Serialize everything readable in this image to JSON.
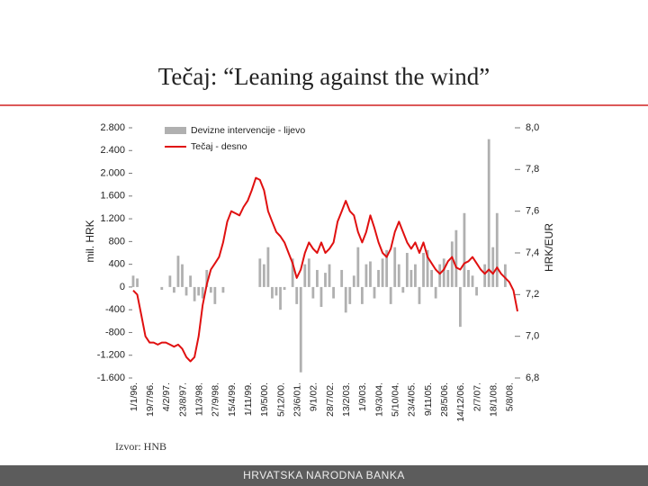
{
  "title": "Tečaj: “Leaning against the wind”",
  "source": "Izvor: HNB",
  "footer": "HRVATSKA NARODNA BANKA",
  "chart_data": {
    "type": "bar",
    "y_label": "mil. HRK",
    "y2_label": "HRK/EUR",
    "categories": [
      "1/1/96.",
      null,
      null,
      null,
      "19/7/96.",
      null,
      null,
      null,
      "4/2/97.",
      null,
      null,
      null,
      "23/8/97.",
      null,
      null,
      null,
      "11/3/98.",
      null,
      null,
      null,
      "27/9/98.",
      null,
      null,
      null,
      "15/4/99.",
      null,
      null,
      null,
      "1/11/99.",
      null,
      null,
      null,
      "19/5/00.",
      null,
      null,
      null,
      "5/12/00.",
      null,
      null,
      null,
      "23/6/01.",
      null,
      null,
      null,
      "9/1/02.",
      null,
      null,
      null,
      "28/7/02.",
      null,
      null,
      null,
      "13/2/03.",
      null,
      null,
      null,
      "1/9/03.",
      null,
      null,
      null,
      "19/3/04.",
      null,
      null,
      null,
      "5/10/04.",
      null,
      null,
      null,
      "23/4/05.",
      null,
      null,
      null,
      "9/11/05.",
      null,
      null,
      null,
      "28/5/06.",
      null,
      null,
      null,
      "14/12/06.",
      null,
      null,
      null,
      "2/7/07.",
      null,
      null,
      null,
      "18/1/08.",
      null,
      null,
      null,
      "5/8/08.",
      null,
      null
    ],
    "series": [
      {
        "name": "Devizne intervencije - lijevo",
        "type": "bar",
        "color": "#b0b0b0",
        "values": [
          200,
          150,
          0,
          0,
          0,
          0,
          0,
          -50,
          0,
          200,
          -100,
          550,
          400,
          -150,
          200,
          -250,
          -150,
          -200,
          300,
          -100,
          -300,
          0,
          -100,
          0,
          0,
          0,
          0,
          0,
          0,
          0,
          0,
          500,
          400,
          700,
          -200,
          -150,
          -400,
          -50,
          0,
          500,
          -300,
          -1500,
          400,
          500,
          -200,
          300,
          -350,
          250,
          400,
          -200,
          0,
          300,
          -450,
          -300,
          200,
          700,
          -300,
          400,
          450,
          -200,
          300,
          500,
          650,
          -300,
          700,
          400,
          -100,
          600,
          300,
          400,
          -300,
          600,
          650,
          300,
          -200,
          400,
          500,
          300,
          800,
          1000,
          -700,
          1300,
          300,
          200,
          -150,
          0,
          400,
          2600,
          700,
          1300,
          0,
          400,
          0,
          0,
          0
        ]
      },
      {
        "name": "Tečaj - desno",
        "type": "line",
        "axis": "y2",
        "color": "#e01010",
        "values": [
          7.22,
          7.2,
          7.1,
          7.0,
          6.97,
          6.97,
          6.96,
          6.97,
          6.97,
          6.96,
          6.95,
          6.96,
          6.94,
          6.9,
          6.88,
          6.9,
          7.0,
          7.15,
          7.25,
          7.32,
          7.35,
          7.38,
          7.45,
          7.55,
          7.6,
          7.59,
          7.58,
          7.62,
          7.65,
          7.7,
          7.76,
          7.75,
          7.7,
          7.6,
          7.55,
          7.5,
          7.48,
          7.45,
          7.4,
          7.35,
          7.28,
          7.32,
          7.4,
          7.45,
          7.42,
          7.4,
          7.45,
          7.4,
          7.42,
          7.45,
          7.55,
          7.6,
          7.65,
          7.6,
          7.58,
          7.5,
          7.45,
          7.5,
          7.58,
          7.52,
          7.45,
          7.4,
          7.38,
          7.42,
          7.5,
          7.55,
          7.5,
          7.45,
          7.42,
          7.45,
          7.4,
          7.45,
          7.38,
          7.35,
          7.32,
          7.3,
          7.32,
          7.36,
          7.38,
          7.33,
          7.32,
          7.35,
          7.36,
          7.38,
          7.35,
          7.32,
          7.3,
          7.32,
          7.3,
          7.33,
          7.3,
          7.28,
          7.26,
          7.22,
          7.12
        ]
      }
    ],
    "ylim": [
      -1600,
      2800
    ],
    "yticks": [
      {
        "value": -1600,
        "label": "-1.600"
      },
      {
        "value": -1200,
        "label": "-1.200"
      },
      -800,
      -400,
      0,
      400,
      800,
      {
        "value": 1200,
        "label": "1.200"
      },
      {
        "value": 1600,
        "label": "1.600"
      },
      {
        "value": 2000,
        "label": "2.000"
      },
      {
        "value": 2400,
        "label": "2.400"
      },
      {
        "value": 2800,
        "label": "2.800"
      }
    ],
    "y2lim": [
      6.8,
      8.0
    ],
    "y2ticks": [
      {
        "value": 6.8,
        "label": "6,8"
      },
      {
        "value": 7.0,
        "label": "7,0"
      },
      {
        "value": 7.2,
        "label": "7,2"
      },
      {
        "value": 7.4,
        "label": "7,4"
      },
      {
        "value": 7.6,
        "label": "7,6"
      },
      {
        "value": 7.8,
        "label": "7,8"
      },
      {
        "value": 8.0,
        "label": "8,0"
      }
    ],
    "legend": "top-left"
  }
}
